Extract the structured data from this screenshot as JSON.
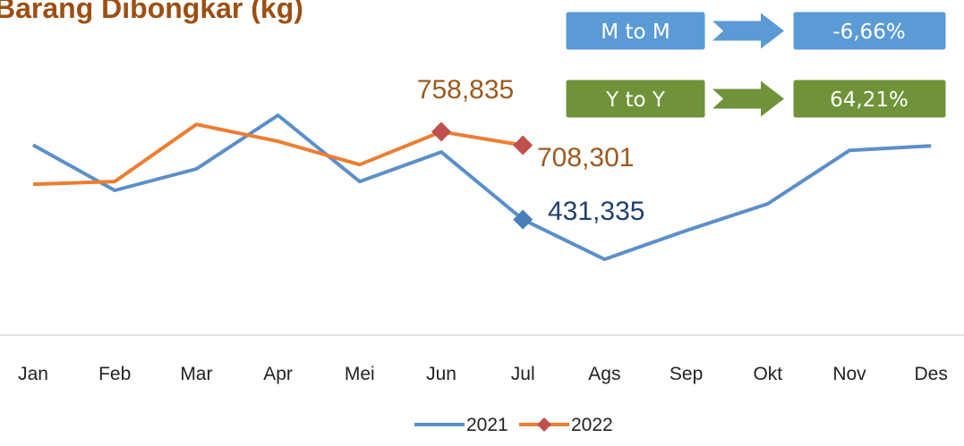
{
  "chart_data": {
    "type": "line",
    "title": "Barang Dibongkar (kg)",
    "categories": [
      "Jan",
      "Feb",
      "Mar",
      "Apr",
      "Mei",
      "Jun",
      "Jul",
      "Ags",
      "Sep",
      "Okt",
      "Nov",
      "Des"
    ],
    "series": [
      {
        "name": "2021",
        "color": "#5b8fc9",
        "marker_color": "#4a7ebb",
        "label_color": "#1f3f6f",
        "values": [
          709000,
          540000,
          620000,
          820000,
          573000,
          683000,
          431335,
          283000,
          390000,
          490000,
          689000,
          706000
        ],
        "value_labels": [
          null,
          null,
          null,
          null,
          null,
          null,
          "431,335",
          null,
          null,
          null,
          null,
          null
        ]
      },
      {
        "name": "2022",
        "color": "#ed7d31",
        "marker_color": "#c0504d",
        "label_color": "#9c5a1f",
        "values": [
          563000,
          573000,
          786000,
          723000,
          636000,
          758835,
          708301,
          null,
          null,
          null,
          null,
          null
        ],
        "value_labels": [
          null,
          null,
          null,
          null,
          null,
          "758,835",
          "708,301",
          null,
          null,
          null,
          null,
          null
        ]
      }
    ],
    "ylim": [
      0,
      1250000
    ],
    "annotations": [
      {
        "label": "M to M",
        "value": "-6,66%",
        "color": "#5b9bd5"
      },
      {
        "label": "Y to Y",
        "value": "64,21%",
        "color": "#70933a"
      }
    ],
    "legend": "bottom"
  }
}
